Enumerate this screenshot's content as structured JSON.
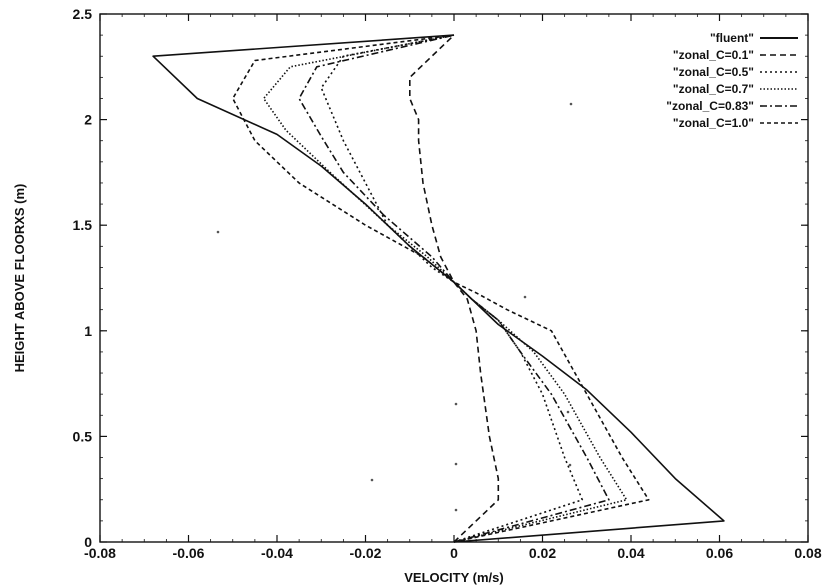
{
  "chart_data": {
    "type": "line",
    "title": "",
    "xlabel": "VELOCITY (m/s)",
    "ylabel": "HEIGHT ABOVE FLOORXS (m)",
    "xlim": [
      -0.08,
      0.08
    ],
    "ylim": [
      0,
      2.5
    ],
    "xticks": [
      -0.08,
      -0.06,
      -0.04,
      -0.02,
      0,
      0.02,
      0.04,
      0.06,
      0.08
    ],
    "xtick_labels": [
      "-0.08",
      "-0.06",
      "-0.04",
      "-0.02",
      "0",
      "0.02",
      "0.04",
      "0.06",
      "0.08"
    ],
    "yticks": [
      0,
      0.5,
      1,
      1.5,
      2,
      2.5
    ],
    "ytick_labels": [
      "0",
      "0.5",
      "1",
      "1.5",
      "2",
      "2.5"
    ],
    "grid": false,
    "legend_position": "top-right",
    "series": [
      {
        "name": "\"fluent\"",
        "dash": "solid",
        "x": [
          0,
          0.061,
          0.05,
          0.04,
          0.03,
          0.02,
          0.01,
          0,
          -0.01,
          -0.02,
          -0.03,
          -0.04,
          -0.058,
          -0.068,
          0
        ],
        "y": [
          0,
          0.1,
          0.3,
          0.52,
          0.72,
          0.88,
          1.03,
          1.23,
          1.4,
          1.6,
          1.78,
          1.93,
          2.1,
          2.3,
          2.4
        ]
      },
      {
        "name": "\"zonal_C=0.1\"",
        "dash": "dashed",
        "x": [
          0,
          0.01,
          0.01,
          0.008,
          0.006,
          0.005,
          0.003,
          0,
          -0.003,
          -0.005,
          -0.007,
          -0.008,
          -0.008,
          -0.01,
          -0.01,
          -0.005,
          0
        ],
        "y": [
          0,
          0.2,
          0.3,
          0.5,
          0.8,
          1.0,
          1.15,
          1.23,
          1.35,
          1.5,
          1.7,
          1.9,
          2.0,
          2.1,
          2.2,
          2.3,
          2.4
        ]
      },
      {
        "name": "\"zonal_C=0.5\"",
        "dash": "dotted",
        "x": [
          0,
          0.029,
          0.025,
          0.02,
          0.015,
          0.01,
          0.004,
          0,
          -0.005,
          -0.015,
          -0.02,
          -0.025,
          -0.03,
          -0.025,
          0
        ],
        "y": [
          0,
          0.2,
          0.4,
          0.7,
          0.9,
          1.05,
          1.15,
          1.23,
          1.3,
          1.5,
          1.7,
          1.9,
          2.15,
          2.3,
          2.4
        ]
      },
      {
        "name": "\"zonal_C=0.7\"",
        "dash": "dotted-fine",
        "x": [
          0,
          0.039,
          0.033,
          0.025,
          0.018,
          0.01,
          0.004,
          0,
          -0.006,
          -0.015,
          -0.028,
          -0.038,
          -0.043,
          -0.037,
          0
        ],
        "y": [
          0,
          0.2,
          0.4,
          0.7,
          0.9,
          1.05,
          1.15,
          1.23,
          1.35,
          1.5,
          1.75,
          1.95,
          2.1,
          2.25,
          2.4
        ]
      },
      {
        "name": "\"zonal_C=0.83\"",
        "dash": "dash-dot",
        "x": [
          0,
          0.035,
          0.03,
          0.022,
          0.015,
          0.01,
          0.004,
          0,
          -0.005,
          -0.016,
          -0.025,
          -0.03,
          -0.035,
          -0.031,
          0
        ],
        "y": [
          0,
          0.2,
          0.4,
          0.7,
          0.9,
          1.05,
          1.15,
          1.23,
          1.35,
          1.55,
          1.75,
          1.92,
          2.1,
          2.25,
          2.4
        ]
      },
      {
        "name": "\"zonal_C=1.0\"",
        "dash": "dashed-short",
        "x": [
          0,
          0.044,
          0.038,
          0.03,
          0.022,
          0.012,
          0.005,
          0,
          -0.007,
          -0.02,
          -0.035,
          -0.045,
          -0.05,
          -0.045,
          0
        ],
        "y": [
          0,
          0.2,
          0.4,
          0.7,
          1.0,
          1.1,
          1.18,
          1.23,
          1.35,
          1.5,
          1.7,
          1.9,
          2.1,
          2.28,
          2.4
        ]
      }
    ]
  }
}
